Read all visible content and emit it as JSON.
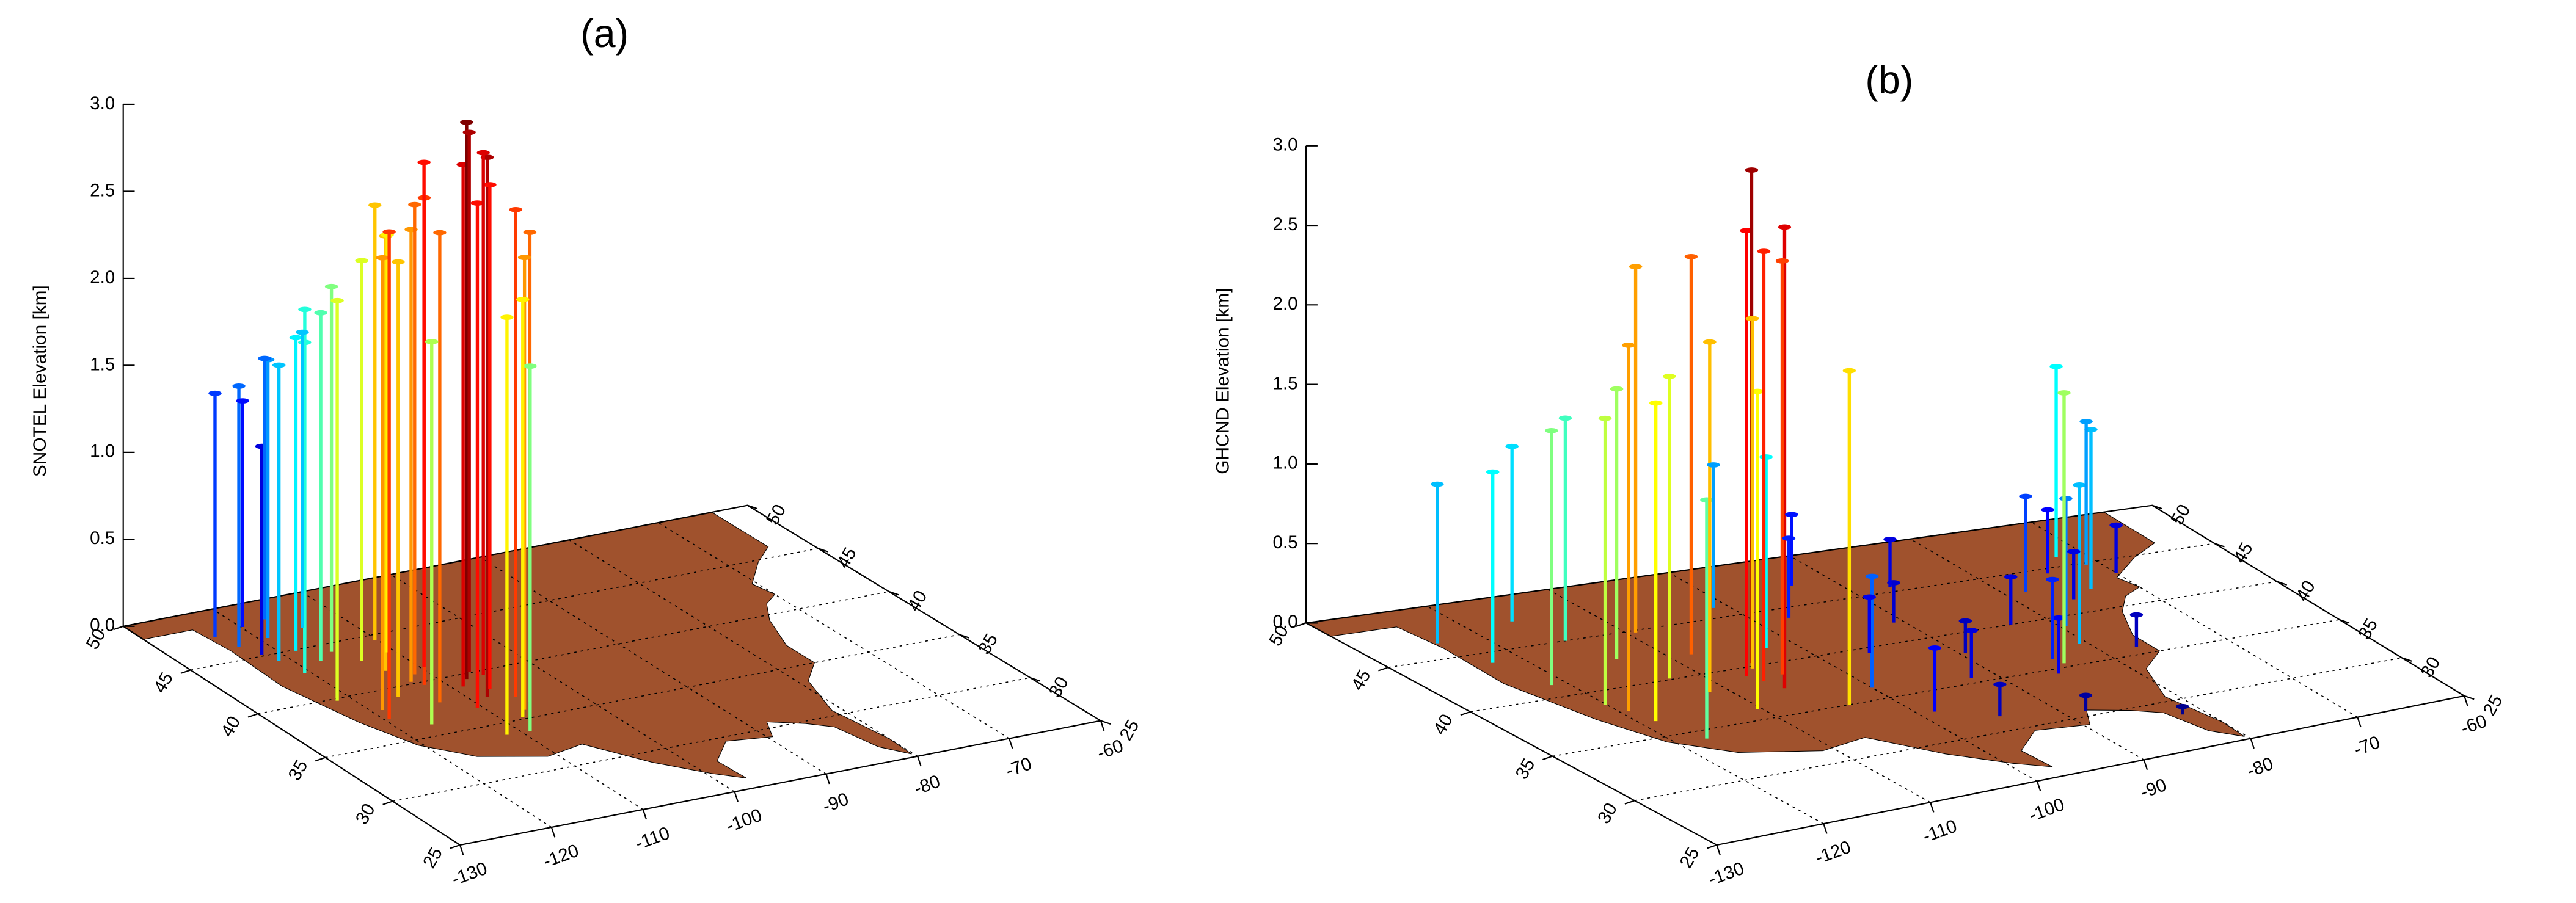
{
  "chart_data": [
    {
      "type": "stem3d",
      "title": "(a)",
      "zlabel": "SNOTEL Elevation [km]",
      "xlim": [
        -130,
        -60
      ],
      "ylim": [
        25,
        50
      ],
      "zlim": [
        0,
        3.0
      ],
      "xticks": [
        -130,
        -120,
        -110,
        -100,
        -90,
        -80,
        -70,
        -60
      ],
      "yticks": [
        25,
        30,
        35,
        40,
        45,
        50
      ],
      "zticks": [
        {
          "value": 0,
          "label": "0.0"
        },
        0.5,
        {
          "value": 1,
          "label": "1.0"
        },
        1.5,
        {
          "value": 2,
          "label": "2.0"
        },
        2.5,
        {
          "value": 3,
          "label": "3.0"
        }
      ],
      "colormap": "jet",
      "clim": [
        1.0,
        3.2
      ],
      "land_color": "#a0522d",
      "grid": true,
      "stations": {
        "x": [
          -123.5,
          -122.8,
          -121.9,
          -121.2,
          -120.6,
          -119.8,
          -119.1,
          -118.4,
          -117.6,
          -116.9,
          -116.2,
          -115.5,
          -114.8,
          -114.1,
          -113.4,
          -112.7,
          -112.0,
          -111.4,
          -110.8,
          -110.2,
          -109.6,
          -108.9,
          -108.2,
          -107.6,
          -107.0,
          -106.4,
          -105.8,
          -105.3,
          -106.8,
          -111.6,
          -110.5,
          -113.0,
          -115.8,
          -118.9,
          -121.5,
          -119.5,
          -116.6,
          -109.2,
          -105.6,
          -107.9
        ],
        "y": [
          47.5,
          46.2,
          45.1,
          44.3,
          42.8,
          47.9,
          46.5,
          44.9,
          43.6,
          48.2,
          45.7,
          44.2,
          46.8,
          42.9,
          41.6,
          40.2,
          39.7,
          40.8,
          43.2,
          44.5,
          41.3,
          38.9,
          37.6,
          39.5,
          38.2,
          40.1,
          37.1,
          36.4,
          35.8,
          33.9,
          36.8,
          37.9,
          39.1,
          38.2,
          39.8,
          37.3,
          36.1,
          33.8,
          39.6,
          35.2
        ],
        "z": [
          1.4,
          1.5,
          1.2,
          1.7,
          1.9,
          1.3,
          1.6,
          1.8,
          2.0,
          1.5,
          1.9,
          2.1,
          1.7,
          2.3,
          2.5,
          2.6,
          2.8,
          2.7,
          2.4,
          2.5,
          2.9,
          3.0,
          3.1,
          3.2,
          2.9,
          3.1,
          2.8,
          2.7,
          2.6,
          2.4,
          2.9,
          2.7,
          2.5,
          2.6,
          2.3,
          2.8,
          2.2,
          2.1,
          3.0,
          2.4
        ]
      }
    },
    {
      "type": "stem3d",
      "title": "(b)",
      "zlabel": "GHCND Elevation [km]",
      "xlim": [
        -130,
        -60
      ],
      "ylim": [
        25,
        50
      ],
      "zlim": [
        0,
        3.0
      ],
      "xticks": [
        -130,
        -120,
        -110,
        -100,
        -90,
        -80,
        -70,
        -60
      ],
      "yticks": [
        25,
        30,
        35,
        40,
        45,
        50
      ],
      "zticks": [
        {
          "value": 0,
          "label": "0.0"
        },
        0.5,
        {
          "value": 1,
          "label": "1.0"
        },
        1.5,
        {
          "value": 2,
          "label": "2.0"
        },
        2.5,
        {
          "value": 3,
          "label": "3.0"
        }
      ],
      "colormap": "jet",
      "clim": [
        0,
        3.2
      ],
      "land_color": "#a0522d",
      "grid": true,
      "stations": {
        "x": [
          -123.8,
          -122.5,
          -121.3,
          -120.1,
          -118.7,
          -117.4,
          -116.2,
          -115.0,
          -113.8,
          -112.6,
          -111.5,
          -110.4,
          -109.3,
          -108.2,
          -107.1,
          -106.0,
          -105.2,
          -104.5,
          -103.6,
          -102.4,
          -101.2,
          -100.0,
          -98.6,
          -97.3,
          -96.0,
          -94.7,
          -93.4,
          -92.1,
          -90.8,
          -89.5,
          -88.2,
          -86.9,
          -85.6,
          -84.3,
          -83.1,
          -81.9,
          -80.7,
          -79.5,
          -78.3,
          -77.1,
          -75.9,
          -74.7,
          -73.5,
          -72.3,
          -71.1,
          -70.0,
          -106.5,
          -105.8,
          -119.3,
          -84.0
        ],
        "y": [
          46.5,
          44.0,
          41.2,
          38.7,
          36.5,
          34.2,
          47.5,
          45.0,
          42.6,
          40.1,
          38.3,
          36.0,
          44.8,
          42.0,
          39.2,
          37.5,
          40.3,
          38.8,
          35.0,
          41.5,
          46.0,
          36.2,
          33.0,
          44.0,
          39.5,
          31.5,
          47.0,
          35.5,
          42.0,
          38.0,
          30.5,
          45.5,
          34.5,
          36.0,
          40.0,
          28.5,
          37.0,
          39.0,
          43.0,
          35.8,
          41.5,
          44.5,
          42.3,
          46.0,
          44.8,
          43.5,
          38.5,
          39.8,
          37.8,
          35.4
        ],
        "z": [
          1.0,
          1.2,
          1.6,
          1.8,
          2.0,
          1.5,
          1.1,
          1.4,
          1.7,
          1.9,
          2.2,
          2.0,
          2.3,
          2.5,
          2.8,
          2.9,
          3.1,
          2.6,
          2.1,
          1.2,
          0.9,
          0.7,
          0.4,
          0.5,
          0.35,
          0.2,
          0.45,
          0.3,
          0.25,
          0.2,
          0.1,
          0.3,
          0.35,
          0.5,
          0.3,
          0.05,
          1.0,
          0.8,
          0.6,
          0.2,
          0.3,
          0.4,
          1.0,
          1.2,
          0.9,
          0.3,
          2.7,
          2.2,
          2.3,
          1.7
        ]
      }
    }
  ]
}
